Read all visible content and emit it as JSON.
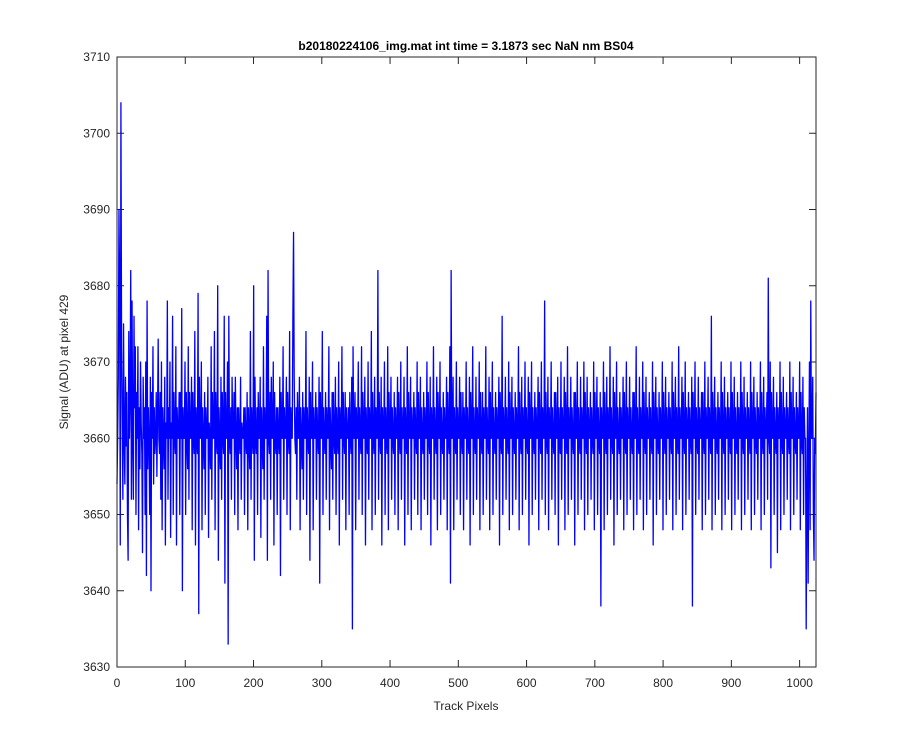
{
  "chart_data": {
    "type": "line",
    "title": "b20180224106_img.mat int time = 3.1873 sec  NaN nm BS04",
    "xlabel": "Track Pixels",
    "ylabel": "Signal (ADU) at pixel 429",
    "xlim": [
      0,
      1024
    ],
    "ylim": [
      3630,
      3710
    ],
    "xticks": [
      0,
      100,
      200,
      300,
      400,
      500,
      600,
      700,
      800,
      900,
      1000
    ],
    "yticks": [
      3630,
      3640,
      3650,
      3660,
      3670,
      3680,
      3690,
      3700,
      3710
    ],
    "grid": false,
    "legend": "none",
    "line_color": "#0000ff",
    "series": [
      {
        "values": [
          3654,
          3660,
          3668,
          3690,
          3680,
          3646,
          3704,
          3672,
          3662,
          3652,
          3675,
          3660,
          3654,
          3668,
          3659,
          3666,
          3650,
          3644,
          3674,
          3660,
          3666,
          3682,
          3652,
          3678,
          3660,
          3652,
          3676,
          3664,
          3672,
          3650,
          3666,
          3660,
          3672,
          3648,
          3664,
          3656,
          3670,
          3662,
          3658,
          3645,
          3668,
          3660,
          3664,
          3650,
          3670,
          3642,
          3678,
          3656,
          3664,
          3660,
          3650,
          3668,
          3640,
          3666,
          3660,
          3672,
          3654,
          3664,
          3658,
          3660,
          3666,
          3655,
          3663,
          3673,
          3660,
          3658,
          3666,
          3652,
          3670,
          3648,
          3664,
          3660,
          3656,
          3668,
          3646,
          3662,
          3660,
          3678,
          3652,
          3664,
          3660,
          3670,
          3647,
          3662,
          3660,
          3676,
          3650,
          3666,
          3660,
          3658,
          3672,
          3646,
          3664,
          3660,
          3660,
          3666,
          3650,
          3666,
          3660,
          3677,
          3640,
          3664,
          3660,
          3660,
          3670,
          3650,
          3666,
          3660,
          3656,
          3672,
          3652,
          3666,
          3660,
          3660,
          3668,
          3648,
          3666,
          3660,
          3658,
          3674,
          3646,
          3664,
          3660,
          3658,
          3679,
          3637,
          3668,
          3660,
          3660,
          3670,
          3648,
          3664,
          3660,
          3656,
          3666,
          3650,
          3664,
          3660,
          3660,
          3668,
          3647,
          3662,
          3660,
          3656,
          3672,
          3652,
          3666,
          3660,
          3660,
          3674,
          3648,
          3666,
          3660,
          3658,
          3680,
          3644,
          3664,
          3660,
          3656,
          3668,
          3652,
          3666,
          3660,
          3658,
          3676,
          3641,
          3666,
          3660,
          3660,
          3670,
          3633,
          3676,
          3660,
          3658,
          3664,
          3652,
          3668,
          3660,
          3660,
          3666,
          3650,
          3668,
          3660,
          3656,
          3664,
          3648,
          3664,
          3660,
          3658,
          3668,
          3652,
          3662,
          3660,
          3660,
          3664,
          3650,
          3664,
          3660,
          3658,
          3666,
          3648,
          3664,
          3660,
          3656,
          3674,
          3652,
          3664,
          3660,
          3658,
          3680,
          3644,
          3668,
          3660,
          3658,
          3664,
          3650,
          3666,
          3660,
          3660,
          3668,
          3647,
          3664,
          3660,
          3656,
          3672,
          3652,
          3664,
          3660,
          3660,
          3676,
          3644,
          3682,
          3660,
          3658,
          3666,
          3652,
          3668,
          3660,
          3660,
          3670,
          3646,
          3666,
          3660,
          3658,
          3664,
          3650,
          3664,
          3660,
          3658,
          3668,
          3642,
          3666,
          3660,
          3660,
          3672,
          3652,
          3664,
          3660,
          3660,
          3668,
          3650,
          3666,
          3660,
          3658,
          3674,
          3648,
          3664,
          3660,
          3660,
          3676,
          3687,
          3668,
          3660,
          3658,
          3664,
          3652,
          3666,
          3660,
          3660,
          3668,
          3648,
          3664,
          3660,
          3656,
          3666,
          3652,
          3664,
          3660,
          3660,
          3674,
          3650,
          3664,
          3660,
          3658,
          3668,
          3644,
          3666,
          3660,
          3660,
          3670,
          3648,
          3664,
          3660,
          3660,
          3666,
          3652,
          3664,
          3660,
          3658,
          3668,
          3641,
          3666,
          3660,
          3660,
          3674,
          3650,
          3664,
          3660,
          3658,
          3666,
          3652,
          3664,
          3660,
          3660,
          3672,
          3648,
          3664,
          3660,
          3656,
          3666,
          3652,
          3666,
          3660,
          3658,
          3668,
          3650,
          3664,
          3660,
          3658,
          3670,
          3646,
          3664,
          3660,
          3660,
          3672,
          3652,
          3666,
          3660,
          3658,
          3666,
          3648,
          3664,
          3660,
          3660,
          3664,
          3650,
          3666,
          3660,
          3658,
          3668,
          3635,
          3672,
          3660,
          3660,
          3666,
          3648,
          3664,
          3660,
          3660,
          3670,
          3652,
          3664,
          3660,
          3658,
          3672,
          3650,
          3666,
          3660,
          3660,
          3668,
          3646,
          3664,
          3660,
          3658,
          3670,
          3652,
          3664,
          3660,
          3660,
          3674,
          3648,
          3666,
          3660,
          3658,
          3668,
          3650,
          3664,
          3660,
          3660,
          3682,
          3652,
          3666,
          3660,
          3658,
          3668,
          3646,
          3664,
          3660,
          3660,
          3670,
          3650,
          3664,
          3660,
          3658,
          3672,
          3648,
          3666,
          3660,
          3660,
          3668,
          3652,
          3664,
          3660,
          3658,
          3666,
          3650,
          3664,
          3660,
          3660,
          3668,
          3648,
          3666,
          3660,
          3658,
          3670,
          3652,
          3664,
          3660,
          3660,
          3668,
          3646,
          3664,
          3660,
          3658,
          3672,
          3650,
          3666,
          3660,
          3660,
          3668,
          3648,
          3664,
          3660,
          3660,
          3666,
          3652,
          3664,
          3660,
          3658,
          3670,
          3650,
          3666,
          3660,
          3660,
          3668,
          3648,
          3664,
          3660,
          3658,
          3666,
          3652,
          3664,
          3660,
          3660,
          3670,
          3650,
          3666,
          3660,
          3658,
          3668,
          3646,
          3664,
          3660,
          3660,
          3672,
          3652,
          3664,
          3660,
          3658,
          3668,
          3648,
          3666,
          3660,
          3660,
          3670,
          3650,
          3664,
          3660,
          3658,
          3666,
          3652,
          3664,
          3660,
          3660,
          3668,
          3648,
          3666,
          3660,
          3658,
          3672,
          3641,
          3682,
          3660,
          3660,
          3668,
          3648,
          3664,
          3660,
          3658,
          3670,
          3652,
          3664,
          3660,
          3660,
          3668,
          3650,
          3666,
          3660,
          3658,
          3666,
          3648,
          3664,
          3660,
          3660,
          3670,
          3652,
          3664,
          3660,
          3658,
          3668,
          3646,
          3666,
          3660,
          3660,
          3672,
          3650,
          3664,
          3660,
          3658,
          3668,
          3652,
          3664,
          3660,
          3660,
          3670,
          3648,
          3666,
          3660,
          3658,
          3666,
          3650,
          3664,
          3660,
          3660,
          3672,
          3652,
          3664,
          3660,
          3658,
          3668,
          3648,
          3666,
          3660,
          3660,
          3670,
          3650,
          3664,
          3660,
          3658,
          3666,
          3652,
          3664,
          3660,
          3660,
          3668,
          3646,
          3666,
          3660,
          3658,
          3676,
          3650,
          3664,
          3660,
          3660,
          3668,
          3652,
          3664,
          3660,
          3658,
          3670,
          3648,
          3666,
          3660,
          3660,
          3668,
          3650,
          3664,
          3660,
          3658,
          3666,
          3652,
          3664,
          3660,
          3660,
          3672,
          3648,
          3666,
          3660,
          3658,
          3668,
          3650,
          3664,
          3660,
          3660,
          3670,
          3652,
          3664,
          3660,
          3658,
          3668,
          3646,
          3666,
          3660,
          3660,
          3670,
          3650,
          3664,
          3660,
          3658,
          3666,
          3652,
          3664,
          3660,
          3660,
          3668,
          3648,
          3666,
          3660,
          3658,
          3670,
          3652,
          3664,
          3660,
          3660,
          3678,
          3650,
          3666,
          3660,
          3658,
          3668,
          3648,
          3664,
          3660,
          3660,
          3670,
          3652,
          3664,
          3660,
          3658,
          3666,
          3650,
          3666,
          3660,
          3660,
          3668,
          3646,
          3664,
          3660,
          3658,
          3670,
          3652,
          3664,
          3660,
          3660,
          3668,
          3648,
          3666,
          3660,
          3658,
          3672,
          3650,
          3664,
          3660,
          3660,
          3668,
          3652,
          3664,
          3660,
          3658,
          3666,
          3646,
          3666,
          3660,
          3660,
          3670,
          3650,
          3664,
          3660,
          3658,
          3668,
          3652,
          3664,
          3660,
          3660,
          3670,
          3648,
          3666,
          3660,
          3658,
          3668,
          3650,
          3664,
          3660,
          3660,
          3666,
          3652,
          3664,
          3660,
          3658,
          3670,
          3648,
          3666,
          3660,
          3660,
          3668,
          3650,
          3664,
          3660,
          3658,
          3666,
          3638,
          3664,
          3660,
          3660,
          3670,
          3648,
          3666,
          3660,
          3658,
          3668,
          3650,
          3664,
          3660,
          3660,
          3672,
          3652,
          3664,
          3660,
          3658,
          3668,
          3646,
          3666,
          3660,
          3660,
          3670,
          3650,
          3664,
          3660,
          3658,
          3666,
          3652,
          3664,
          3660,
          3660,
          3668,
          3648,
          3666,
          3660,
          3658,
          3670,
          3650,
          3664,
          3660,
          3660,
          3668,
          3652,
          3664,
          3660,
          3658,
          3666,
          3648,
          3666,
          3660,
          3660,
          3672,
          3650,
          3664,
          3660,
          3658,
          3668,
          3652,
          3664,
          3660,
          3660,
          3670,
          3648,
          3666,
          3660,
          3658,
          3668,
          3650,
          3664,
          3660,
          3660,
          3666,
          3652,
          3664,
          3660,
          3658,
          3670,
          3646,
          3666,
          3660,
          3660,
          3668,
          3650,
          3664,
          3660,
          3658,
          3666,
          3652,
          3664,
          3660,
          3660,
          3670,
          3648,
          3666,
          3660,
          3658,
          3668,
          3650,
          3664,
          3660,
          3660,
          3666,
          3652,
          3664,
          3660,
          3658,
          3670,
          3648,
          3666,
          3660,
          3660,
          3668,
          3650,
          3664,
          3660,
          3658,
          3672,
          3652,
          3664,
          3660,
          3660,
          3668,
          3648,
          3666,
          3660,
          3658,
          3670,
          3650,
          3664,
          3660,
          3660,
          3666,
          3652,
          3664,
          3660,
          3658,
          3668,
          3638,
          3666,
          3660,
          3660,
          3670,
          3650,
          3664,
          3660,
          3658,
          3668,
          3652,
          3664,
          3660,
          3660,
          3666,
          3648,
          3666,
          3660,
          3658,
          3670,
          3650,
          3664,
          3660,
          3660,
          3668,
          3652,
          3664,
          3660,
          3658,
          3676,
          3648,
          3666,
          3660,
          3660,
          3668,
          3650,
          3664,
          3660,
          3658,
          3666,
          3652,
          3664,
          3660,
          3660,
          3670,
          3648,
          3666,
          3660,
          3658,
          3668,
          3650,
          3664,
          3660,
          3660,
          3666,
          3652,
          3664,
          3660,
          3658,
          3670,
          3648,
          3666,
          3660,
          3660,
          3668,
          3650,
          3664,
          3660,
          3658,
          3666,
          3652,
          3664,
          3660,
          3660,
          3670,
          3648,
          3666,
          3660,
          3658,
          3668,
          3650,
          3664,
          3660,
          3660,
          3666,
          3652,
          3664,
          3660,
          3658,
          3670,
          3648,
          3666,
          3660,
          3660,
          3668,
          3650,
          3664,
          3660,
          3658,
          3666,
          3652,
          3664,
          3660,
          3660,
          3670,
          3648,
          3666,
          3660,
          3658,
          3668,
          3650,
          3664,
          3660,
          3660,
          3666,
          3652,
          3681,
          3660,
          3658,
          3670,
          3643,
          3666,
          3660,
          3660,
          3668,
          3650,
          3664,
          3660,
          3658,
          3666,
          3645,
          3664,
          3660,
          3660,
          3670,
          3648,
          3666,
          3660,
          3658,
          3668,
          3650,
          3664,
          3660,
          3660,
          3666,
          3652,
          3664,
          3660,
          3658,
          3670,
          3648,
          3666,
          3660,
          3660,
          3668,
          3650,
          3664,
          3660,
          3658,
          3666,
          3652,
          3664,
          3660,
          3660,
          3670,
          3648,
          3666,
          3660,
          3658,
          3668,
          3650,
          3664,
          3660,
          3660,
          3635,
          3652,
          3664,
          3641,
          3658,
          3670,
          3648,
          3678,
          3660,
          3660,
          3668,
          3650,
          3644,
          3660,
          3658,
          3666
        ]
      }
    ]
  }
}
